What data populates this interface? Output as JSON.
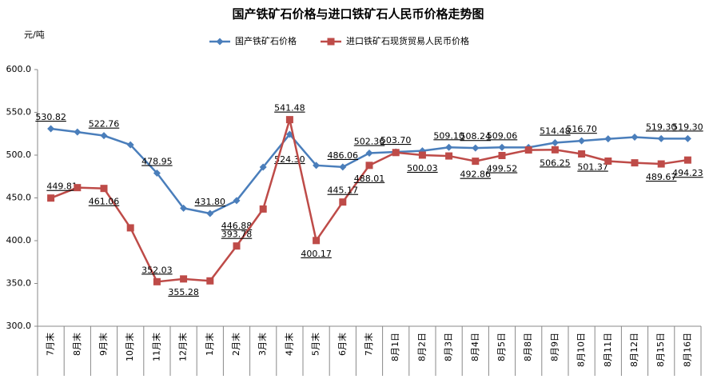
{
  "chart_data": {
    "type": "line",
    "title": "国产铁矿石价格与进口铁矿石人民币价格走势图",
    "y_label": "元/吨",
    "categories": [
      "7月末",
      "8月末",
      "9月末",
      "10月末",
      "11月末",
      "12月末",
      "1月末",
      "2月末",
      "3月末",
      "4月末",
      "5月末",
      "6月末",
      "7月末",
      "8月1日",
      "8月2日",
      "8月3日",
      "8月4日",
      "8月5日",
      "8月8日",
      "8月9日",
      "8月10日",
      "8月11日",
      "8月12日",
      "8月15日",
      "8月16日"
    ],
    "series": [
      {
        "name": "国产铁矿石价格",
        "color": "#4a7ebb",
        "marker": "diamond",
        "values": [
          530.82,
          527,
          522.76,
          512,
          478.95,
          438,
          431.8,
          446.88,
          486,
          524.3,
          488,
          486.06,
          502.36,
          503.7,
          505,
          509.1,
          508.24,
          509.06,
          509,
          514.48,
          516.7,
          519,
          521,
          519.3,
          519.3
        ],
        "value_labels": [
          "530.82",
          null,
          "522.76",
          null,
          "478.95",
          null,
          "431.80",
          "446.88",
          null,
          "524.30",
          null,
          "486.06",
          "502.36",
          "503.70",
          null,
          "509.10",
          "508.24",
          "509.06",
          null,
          "514.48",
          "516.70",
          null,
          null,
          "519.30",
          "519.30"
        ]
      },
      {
        "name": "进口铁矿石现货贸易人民币价格",
        "color": "#be4b48",
        "marker": "square",
        "values": [
          449.81,
          462,
          461.06,
          415,
          352.03,
          355.28,
          353,
          393.78,
          437,
          541.48,
          400.17,
          445.17,
          488.01,
          503,
          500.03,
          499,
          492.86,
          499.52,
          506,
          506.25,
          501.37,
          493,
          491,
          489.67,
          494.23
        ],
        "value_labels": [
          "449.81",
          null,
          "461.06",
          null,
          "352.03",
          "355.28",
          null,
          "393.78",
          null,
          "541.48",
          "400.17",
          "445.17",
          "488.01",
          null,
          "500.03",
          null,
          "492.86",
          "499.52",
          null,
          "506.25",
          "501.37",
          null,
          null,
          "489.67",
          "494.23"
        ]
      }
    ],
    "ylim": [
      300,
      600
    ],
    "yticks": [
      {
        "value": 300,
        "label": "300.0"
      },
      {
        "value": 350,
        "label": "350.0"
      },
      {
        "value": 400,
        "label": "400.0"
      },
      {
        "value": 450,
        "label": "450.0"
      },
      {
        "value": 500,
        "label": "500.0"
      },
      {
        "value": 550,
        "label": "550.0"
      },
      {
        "value": 600,
        "label": "600.0"
      }
    ],
    "legend": "top"
  }
}
